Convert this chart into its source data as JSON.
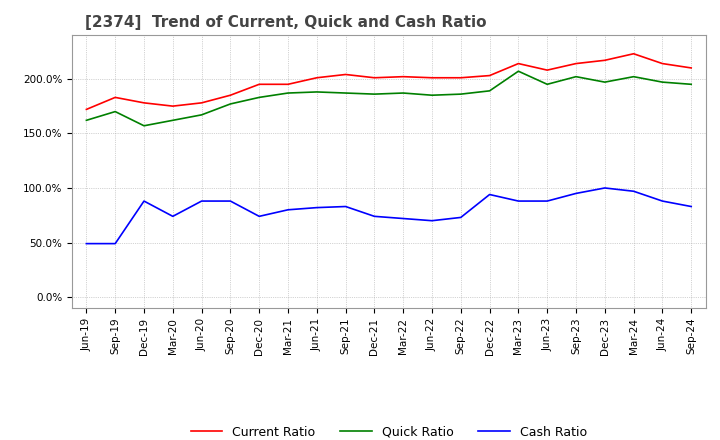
{
  "title": "[2374]  Trend of Current, Quick and Cash Ratio",
  "title_fontsize": 11,
  "background_color": "#ffffff",
  "grid_color": "#aaaaaa",
  "dates": [
    "Jun-19",
    "Sep-19",
    "Dec-19",
    "Mar-20",
    "Jun-20",
    "Sep-20",
    "Dec-20",
    "Mar-21",
    "Jun-21",
    "Sep-21",
    "Dec-21",
    "Mar-22",
    "Jun-22",
    "Sep-22",
    "Dec-22",
    "Mar-23",
    "Jun-23",
    "Sep-23",
    "Dec-23",
    "Mar-24",
    "Jun-24",
    "Sep-24"
  ],
  "current_ratio": [
    1.72,
    1.83,
    1.78,
    1.75,
    1.78,
    1.85,
    1.95,
    1.95,
    2.01,
    2.04,
    2.01,
    2.02,
    2.01,
    2.01,
    2.03,
    2.14,
    2.08,
    2.14,
    2.17,
    2.23,
    2.14,
    2.1
  ],
  "quick_ratio": [
    1.62,
    1.7,
    1.57,
    1.62,
    1.67,
    1.77,
    1.83,
    1.87,
    1.88,
    1.87,
    1.86,
    1.87,
    1.85,
    1.86,
    1.89,
    2.07,
    1.95,
    2.02,
    1.97,
    2.02,
    1.97,
    1.95
  ],
  "cash_ratio": [
    0.49,
    0.49,
    0.88,
    0.74,
    0.88,
    0.88,
    0.74,
    0.8,
    0.82,
    0.83,
    0.74,
    0.72,
    0.7,
    0.73,
    0.94,
    0.88,
    0.88,
    0.95,
    1.0,
    0.97,
    0.88,
    0.83
  ],
  "current_color": "#ff0000",
  "quick_color": "#008000",
  "cash_color": "#0000ff",
  "line_width": 1.2,
  "legend_fontsize": 9,
  "tick_fontsize": 7.5
}
